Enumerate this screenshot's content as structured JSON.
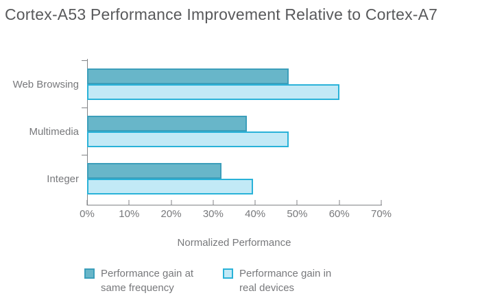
{
  "title": "Cortex-A53 Performance Improvement Relative to Cortex-A7",
  "chart_data": {
    "type": "bar",
    "orientation": "horizontal",
    "title": "Cortex-A53 Performance Improvement Relative to Cortex-A7",
    "categories": [
      "Web Browsing",
      "Multimedia",
      "Integer"
    ],
    "series": [
      {
        "name": "Performance gain at same frequency",
        "values": [
          48,
          38,
          32
        ],
        "fill": "#68b6c9",
        "border": "#3b9eba"
      },
      {
        "name": "Performance gain in real devices",
        "values": [
          60,
          48,
          39.5
        ],
        "fill": "#c2e9f6",
        "border": "#29b2d8"
      }
    ],
    "xlabel": "Normalized Performance",
    "ylabel": "",
    "xlim": [
      0,
      70
    ],
    "x_ticks": [
      "0%",
      "10%",
      "20%",
      "30%",
      "40%",
      "50%",
      "60%",
      "70%"
    ],
    "grid": false,
    "legend_position": "bottom"
  },
  "legend": {
    "items": [
      {
        "label_line1": "Performance gain at",
        "label_line2": "same frequency",
        "fill": "#68b6c9",
        "border": "#3b9eba"
      },
      {
        "label_line1": "Performance gain in",
        "label_line2": "real devices",
        "fill": "#c2e9f6",
        "border": "#29b2d8"
      }
    ]
  },
  "colors": {
    "background": "#ffffff",
    "axis": "#808285",
    "text": "#77787b",
    "title_text": "#58595b",
    "series1_fill": "#68b6c9",
    "series1_border": "#3b9eba",
    "series2_fill": "#c2e9f6",
    "series2_border": "#29b2d8"
  }
}
